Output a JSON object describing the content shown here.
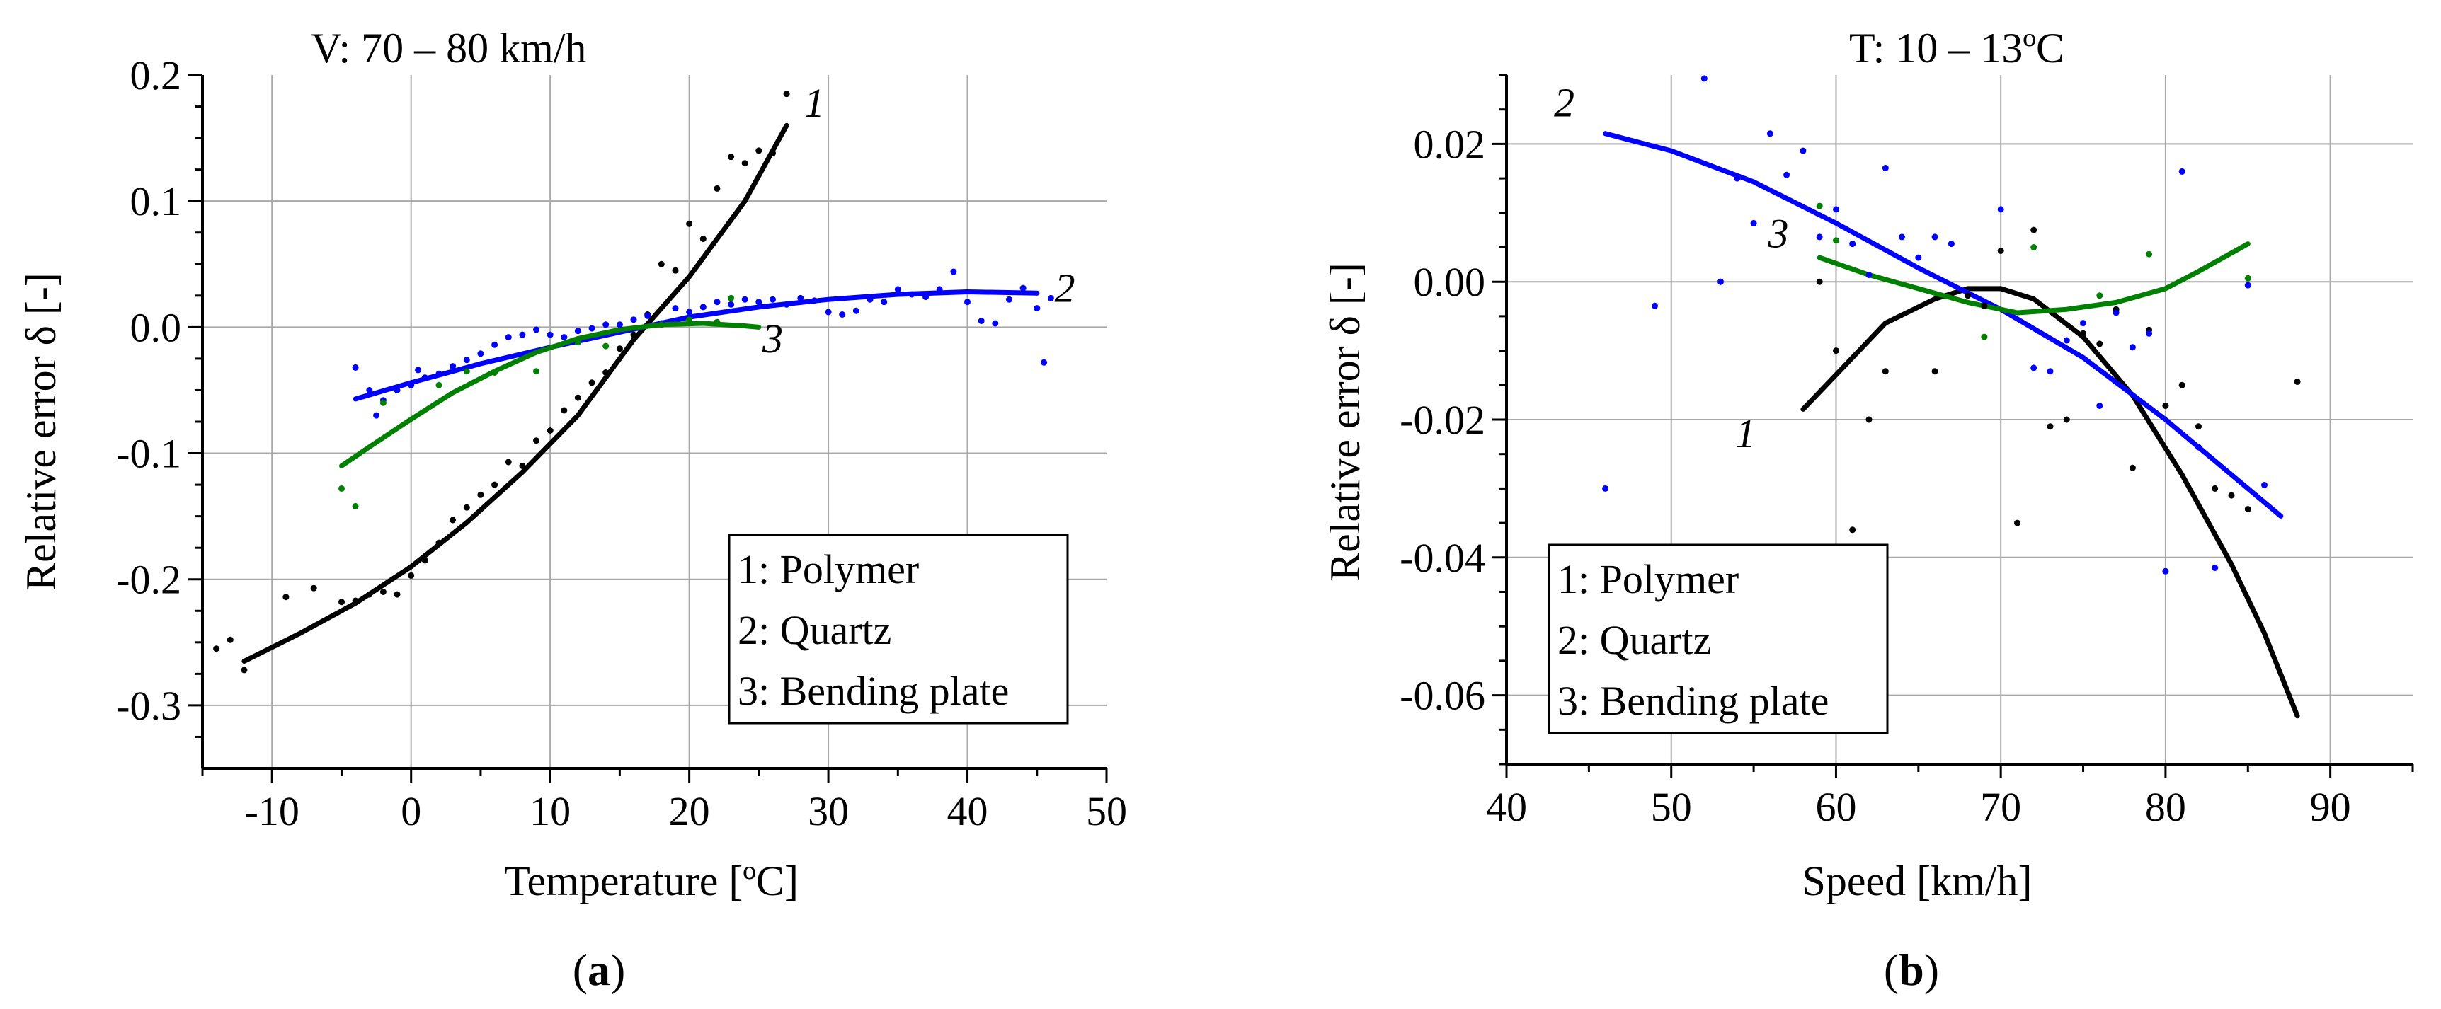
{
  "figure": {
    "panel_labels": [
      {
        "letter": "a",
        "open": "(",
        "close": ")"
      },
      {
        "letter": "b",
        "open": "(",
        "close": ")"
      }
    ]
  },
  "chart_data": [
    {
      "type": "scatter",
      "title": "V: 70 – 80 km/h",
      "xlabel": "Temperature [ºC]",
      "ylabel": "Relative error δ [-]",
      "xlim": [
        -15,
        50
      ],
      "ylim": [
        -0.35,
        0.2
      ],
      "x_ticks": [
        -10,
        0,
        10,
        20,
        30,
        40,
        50
      ],
      "x_tick_labels": [
        "-10",
        "0",
        "10",
        "20",
        "30",
        "40",
        "50"
      ],
      "y_ticks": [
        -0.3,
        -0.2,
        -0.1,
        0.0,
        0.1,
        0.2
      ],
      "y_tick_labels": [
        "-0.3",
        "-0.2",
        "-0.1",
        "0.0",
        "0.1",
        "0.2"
      ],
      "grid": true,
      "legend_position": "bottom-right",
      "legend": [
        "1: Polymer",
        "2: Quartz",
        "3: Bending plate"
      ],
      "series": [
        {
          "name": "1: Polymer",
          "label": "1",
          "color": "#000000",
          "label_at": [
            29,
            0.167
          ],
          "fit": [
            [
              -12,
              -0.265
            ],
            [
              -8,
              -0.243
            ],
            [
              -4,
              -0.219
            ],
            [
              0,
              -0.19
            ],
            [
              4,
              -0.155
            ],
            [
              8,
              -0.115
            ],
            [
              12,
              -0.07
            ],
            [
              16,
              -0.01
            ],
            [
              20,
              0.04
            ],
            [
              24,
              0.1
            ],
            [
              27,
              0.16
            ]
          ],
          "points": [
            [
              -14,
              -0.255
            ],
            [
              -13,
              -0.248
            ],
            [
              -12,
              -0.272
            ],
            [
              -9,
              -0.214
            ],
            [
              -7,
              -0.207
            ],
            [
              -5,
              -0.218
            ],
            [
              -4,
              -0.217
            ],
            [
              -3,
              -0.212
            ],
            [
              -2,
              -0.21
            ],
            [
              -1,
              -0.212
            ],
            [
              0,
              -0.197
            ],
            [
              1,
              -0.185
            ],
            [
              2,
              -0.171
            ],
            [
              3,
              -0.153
            ],
            [
              4,
              -0.143
            ],
            [
              5,
              -0.133
            ],
            [
              6,
              -0.125
            ],
            [
              7,
              -0.107
            ],
            [
              8,
              -0.11
            ],
            [
              9,
              -0.09
            ],
            [
              10,
              -0.082
            ],
            [
              11,
              -0.066
            ],
            [
              12,
              -0.056
            ],
            [
              13,
              -0.044
            ],
            [
              14,
              -0.036
            ],
            [
              15,
              -0.017
            ],
            [
              16,
              -0.006
            ],
            [
              17,
              0.01
            ],
            [
              18,
              0.05
            ],
            [
              19,
              0.045
            ],
            [
              20,
              0.082
            ],
            [
              21,
              0.07
            ],
            [
              22,
              0.11
            ],
            [
              23,
              0.135
            ],
            [
              24,
              0.13
            ],
            [
              25,
              0.14
            ],
            [
              26,
              0.138
            ],
            [
              27,
              0.185
            ]
          ]
        },
        {
          "name": "2: Quartz",
          "label": "2",
          "color": "#0000ff",
          "label_at": [
            47,
            0.02
          ],
          "fit": [
            [
              -4,
              -0.057
            ],
            [
              0,
              -0.044
            ],
            [
              5,
              -0.029
            ],
            [
              10,
              -0.016
            ],
            [
              15,
              -0.004
            ],
            [
              20,
              0.008
            ],
            [
              25,
              0.016
            ],
            [
              30,
              0.022
            ],
            [
              35,
              0.026
            ],
            [
              40,
              0.028
            ],
            [
              45,
              0.027
            ]
          ],
          "points": [
            [
              -4,
              -0.032
            ],
            [
              -3,
              -0.05
            ],
            [
              -2.5,
              -0.07
            ],
            [
              -2,
              -0.058
            ],
            [
              -1,
              -0.05
            ],
            [
              0,
              -0.046
            ],
            [
              0.5,
              -0.034
            ],
            [
              1,
              -0.04
            ],
            [
              2,
              -0.037
            ],
            [
              3,
              -0.031
            ],
            [
              4,
              -0.026
            ],
            [
              5,
              -0.021
            ],
            [
              6,
              -0.014
            ],
            [
              7,
              -0.008
            ],
            [
              8,
              -0.006
            ],
            [
              9,
              -0.002
            ],
            [
              10,
              -0.006
            ],
            [
              11,
              -0.008
            ],
            [
              12,
              -0.003
            ],
            [
              13,
              -0.001
            ],
            [
              14,
              0.002
            ],
            [
              15,
              0.002
            ],
            [
              16,
              0.006
            ],
            [
              17,
              0.009
            ],
            [
              18,
              0.003
            ],
            [
              19,
              0.015
            ],
            [
              20,
              0.012
            ],
            [
              21,
              0.016
            ],
            [
              22,
              0.02
            ],
            [
              23,
              0.018
            ],
            [
              24,
              0.022
            ],
            [
              25,
              0.02
            ],
            [
              26,
              0.022
            ],
            [
              27,
              0.018
            ],
            [
              28,
              0.023
            ],
            [
              29,
              0.021
            ],
            [
              30,
              0.012
            ],
            [
              31,
              0.01
            ],
            [
              32,
              0.013
            ],
            [
              33,
              0.022
            ],
            [
              34,
              0.02
            ],
            [
              35,
              0.03
            ],
            [
              36,
              0.026
            ],
            [
              37,
              0.024
            ],
            [
              38,
              0.03
            ],
            [
              39,
              0.044
            ],
            [
              40,
              0.02
            ],
            [
              41,
              0.005
            ],
            [
              42,
              0.003
            ],
            [
              43,
              0.022
            ],
            [
              44,
              0.031
            ],
            [
              45,
              0.015
            ],
            [
              45.5,
              -0.028
            ],
            [
              46,
              0.023
            ]
          ]
        },
        {
          "name": "3: Bending plate",
          "label": "3",
          "color": "#008000",
          "label_at": [
            26,
            -0.02
          ],
          "fit": [
            [
              -5,
              -0.11
            ],
            [
              -3,
              -0.095
            ],
            [
              0,
              -0.073
            ],
            [
              3,
              -0.052
            ],
            [
              6,
              -0.035
            ],
            [
              9,
              -0.02
            ],
            [
              12,
              -0.009
            ],
            [
              15,
              -0.002
            ],
            [
              18,
              0.002
            ],
            [
              21,
              0.003
            ],
            [
              24,
              0.001
            ],
            [
              25,
              0.0
            ]
          ],
          "points": [
            [
              -5,
              -0.128
            ],
            [
              -4,
              -0.142
            ],
            [
              -2,
              -0.06
            ],
            [
              2,
              -0.046
            ],
            [
              4,
              -0.035
            ],
            [
              6,
              -0.036
            ],
            [
              9,
              -0.035
            ],
            [
              12,
              -0.012
            ],
            [
              14,
              -0.015
            ],
            [
              18,
              0.002
            ],
            [
              20,
              0.006
            ],
            [
              22,
              0.004
            ],
            [
              23,
              0.023
            ]
          ]
        }
      ]
    },
    {
      "type": "scatter",
      "title": "T: 10 – 13ºC",
      "xlabel": "Speed [km/h]",
      "ylabel": "Relative error δ [-]",
      "xlim": [
        40,
        95
      ],
      "ylim": [
        -0.07,
        0.03
      ],
      "x_ticks": [
        40,
        50,
        60,
        70,
        80,
        90
      ],
      "x_tick_labels": [
        "40",
        "50",
        "60",
        "70",
        "80",
        "90"
      ],
      "y_ticks": [
        -0.06,
        -0.04,
        -0.02,
        0.0,
        0.02
      ],
      "y_tick_labels": [
        "-0.06",
        "-0.04",
        "-0.02",
        "0.00",
        "0.02"
      ],
      "grid": true,
      "legend_position": "bottom-left",
      "legend": [
        "1: Polymer",
        "2: Quartz",
        "3: Bending plate"
      ],
      "series": [
        {
          "name": "1: Polymer",
          "label": "1",
          "color": "#000000",
          "label_at": [
            54.5,
            -0.024
          ],
          "fit": [
            [
              58,
              -0.0185
            ],
            [
              60,
              -0.0135
            ],
            [
              63,
              -0.006
            ],
            [
              66,
              -0.0025
            ],
            [
              68,
              -0.001
            ],
            [
              70,
              -0.001
            ],
            [
              72,
              -0.0025
            ],
            [
              75,
              -0.008
            ],
            [
              78,
              -0.0165
            ],
            [
              81,
              -0.028
            ],
            [
              84,
              -0.041
            ],
            [
              86,
              -0.051
            ],
            [
              88,
              -0.063
            ]
          ],
          "points": [
            [
              59,
              0.0
            ],
            [
              60,
              -0.01
            ],
            [
              62,
              -0.02
            ],
            [
              63,
              -0.013
            ],
            [
              66,
              -0.013
            ],
            [
              68,
              -0.002
            ],
            [
              69,
              -0.0035
            ],
            [
              70,
              0.0045
            ],
            [
              71,
              -0.035
            ],
            [
              72,
              0.0075
            ],
            [
              73,
              -0.021
            ],
            [
              74,
              -0.02
            ],
            [
              75,
              -0.0075
            ],
            [
              76,
              -0.009
            ],
            [
              77,
              -0.004
            ],
            [
              78,
              -0.027
            ],
            [
              79,
              -0.007
            ],
            [
              80,
              -0.018
            ],
            [
              81,
              -0.015
            ],
            [
              82,
              -0.021
            ],
            [
              83,
              -0.03
            ],
            [
              84,
              -0.031
            ],
            [
              85,
              -0.033
            ],
            [
              88,
              -0.0145
            ],
            [
              61,
              -0.036
            ]
          ]
        },
        {
          "name": "2: Quartz",
          "label": "2",
          "color": "#0000ff",
          "label_at": [
            43.5,
            0.024
          ],
          "fit": [
            [
              46,
              0.0215
            ],
            [
              50,
              0.019
            ],
            [
              55,
              0.0145
            ],
            [
              60,
              0.0085
            ],
            [
              65,
              0.002
            ],
            [
              70,
              -0.004
            ],
            [
              75,
              -0.011
            ],
            [
              80,
              -0.02
            ],
            [
              84,
              -0.028
            ],
            [
              87,
              -0.034
            ]
          ],
          "points": [
            [
              46,
              -0.03
            ],
            [
              49,
              -0.0035
            ],
            [
              52,
              0.0295
            ],
            [
              53,
              0.0
            ],
            [
              54,
              0.015
            ],
            [
              55,
              0.0085
            ],
            [
              56,
              0.0215
            ],
            [
              57,
              0.0155
            ],
            [
              58,
              0.019
            ],
            [
              59,
              0.0065
            ],
            [
              60,
              0.0105
            ],
            [
              61,
              0.0055
            ],
            [
              62,
              0.001
            ],
            [
              63,
              0.0165
            ],
            [
              64,
              0.0065
            ],
            [
              65,
              0.0035
            ],
            [
              66,
              0.0065
            ],
            [
              67,
              0.0055
            ],
            [
              70,
              0.0105
            ],
            [
              72,
              -0.0125
            ],
            [
              73,
              -0.013
            ],
            [
              74,
              -0.0085
            ],
            [
              75,
              -0.006
            ],
            [
              76,
              -0.018
            ],
            [
              77,
              -0.0045
            ],
            [
              78,
              -0.0095
            ],
            [
              79,
              -0.0075
            ],
            [
              80,
              -0.042
            ],
            [
              81,
              0.016
            ],
            [
              82,
              -0.024
            ],
            [
              83,
              -0.0415
            ],
            [
              85,
              -0.0005
            ],
            [
              86,
              -0.0295
            ]
          ]
        },
        {
          "name": "3: Bending plate",
          "label": "3",
          "color": "#008000",
          "label_at": [
            56.5,
            0.005
          ],
          "fit": [
            [
              59,
              0.0035
            ],
            [
              62,
              0.001
            ],
            [
              65,
              -0.001
            ],
            [
              68,
              -0.003
            ],
            [
              71,
              -0.0045
            ],
            [
              74,
              -0.004
            ],
            [
              77,
              -0.003
            ],
            [
              80,
              -0.001
            ],
            [
              82,
              0.0015
            ],
            [
              85,
              0.0055
            ]
          ],
          "points": [
            [
              59,
              0.011
            ],
            [
              60,
              0.006
            ],
            [
              69,
              -0.008
            ],
            [
              72,
              0.005
            ],
            [
              76,
              -0.002
            ],
            [
              79,
              0.004
            ],
            [
              85,
              0.0005
            ]
          ]
        }
      ]
    }
  ]
}
